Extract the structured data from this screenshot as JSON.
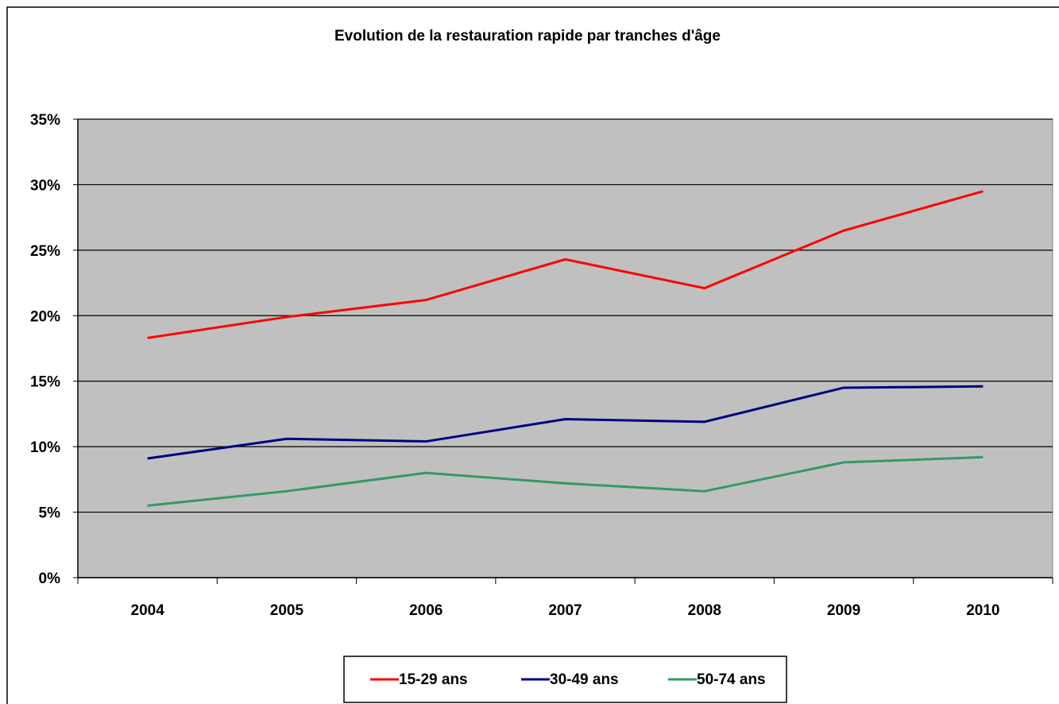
{
  "chart_data": {
    "type": "line",
    "title": "Evolution de la restauration rapide par tranches d'âge",
    "categories": [
      "2004",
      "2005",
      "2006",
      "2007",
      "2008",
      "2009",
      "2010"
    ],
    "series": [
      {
        "name": "15-29 ans",
        "color": "#ff0000",
        "values": [
          18.3,
          19.9,
          21.2,
          24.3,
          22.1,
          26.5,
          29.5
        ]
      },
      {
        "name": "30-49 ans",
        "color": "#000080",
        "values": [
          9.1,
          10.6,
          10.4,
          12.1,
          11.9,
          14.5,
          14.6
        ]
      },
      {
        "name": "50-74 ans",
        "color": "#339966",
        "values": [
          5.5,
          6.6,
          8.0,
          7.2,
          6.6,
          8.8,
          9.2
        ]
      }
    ],
    "ylim": [
      0,
      35
    ],
    "yticks": [
      {
        "value": 0,
        "label": "0%"
      },
      {
        "value": 5,
        "label": "5%"
      },
      {
        "value": 10,
        "label": "10%"
      },
      {
        "value": 15,
        "label": "15%"
      },
      {
        "value": 20,
        "label": "20%"
      },
      {
        "value": 25,
        "label": "25%"
      },
      {
        "value": 30,
        "label": "30%"
      },
      {
        "value": 35,
        "label": "35%"
      }
    ],
    "grid": true,
    "legend": "bottom"
  }
}
